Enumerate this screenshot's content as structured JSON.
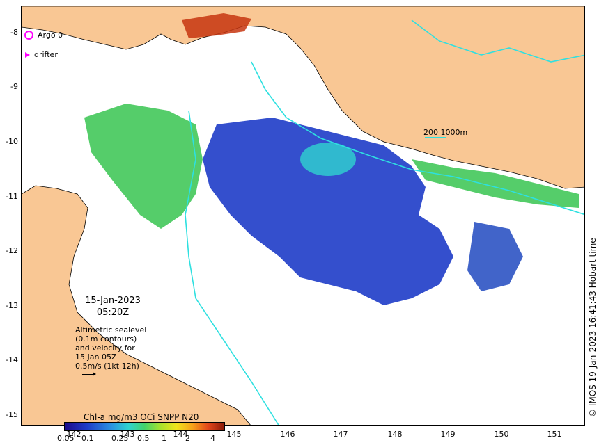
{
  "map": {
    "lat_ticks": [
      "-8",
      "-9",
      "-10",
      "-11",
      "-12",
      "-13",
      "-14",
      "-15"
    ],
    "lon_ticks": [
      "142",
      "143",
      "144",
      "145",
      "146",
      "147",
      "148",
      "149",
      "150",
      "151"
    ],
    "land_color": "#f9c794",
    "contour_color": "#2ee0e0"
  },
  "legend": {
    "argo_label": "Argo 0",
    "drifter_label": "drifter"
  },
  "annotation": {
    "date": "15-Jan-2023",
    "time": "05:20Z",
    "lines": [
      "Altimetric sealevel",
      "(0.1m contours)",
      "and velocity for",
      "15 Jan 05Z",
      "0.5m/s (1kt 12h)"
    ]
  },
  "contour_label": "200  1000m",
  "colorbar": {
    "title": "Chl-a mg/m3 OCi SNPP N20",
    "labels": [
      "0.05",
      "0.1",
      "0.25",
      "0.5",
      "1",
      "2",
      "4"
    ]
  },
  "credit": "© IMOS 19-Jan-2023 16:41:43 Hobart time"
}
